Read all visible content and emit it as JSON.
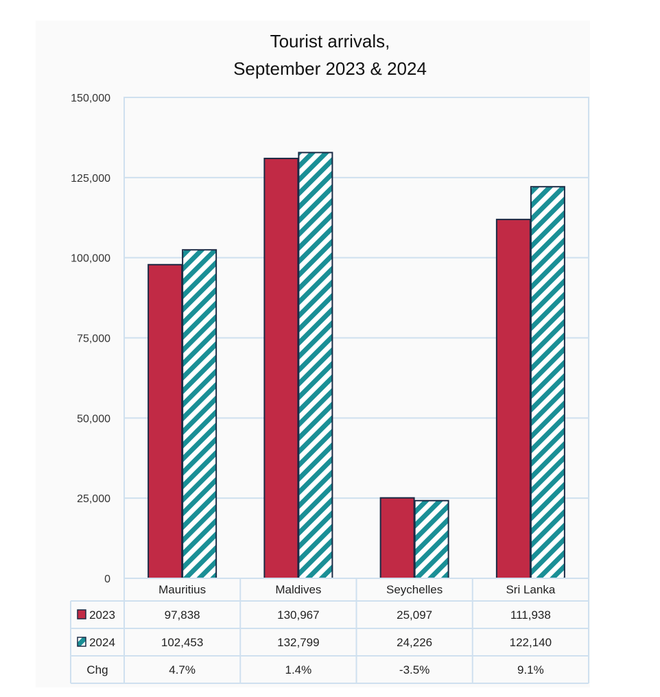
{
  "chart_data": {
    "type": "bar",
    "title_lines": [
      "Tourist arrivals,",
      "September 2023 & 2024"
    ],
    "categories": [
      "Mauritius",
      "Maldives",
      "Seychelles",
      "Sri Lanka"
    ],
    "series": [
      {
        "name": "2023",
        "values": [
          97838,
          130967,
          25097,
          111938
        ],
        "color": "#c12a45",
        "pattern": "solid"
      },
      {
        "name": "2024",
        "values": [
          102453,
          132799,
          24226,
          122140
        ],
        "color": "#1a8f96",
        "pattern": "diagonal-hatch"
      }
    ],
    "table": {
      "rows": [
        {
          "label": "2023",
          "cells": [
            "97,838",
            "130,967",
            "25,097",
            "111,938"
          ]
        },
        {
          "label": "2024",
          "cells": [
            "102,453",
            "132,799",
            "24,226",
            "122,140"
          ]
        },
        {
          "label": "Chg",
          "cells": [
            "4.7%",
            "1.4%",
            "-3.5%",
            "9.1%"
          ]
        }
      ]
    },
    "y_ticks": [
      "0",
      "25,000",
      "50,000",
      "75,000",
      "100,000",
      "125,000",
      "150,000"
    ],
    "ylim": [
      0,
      150000
    ],
    "grid": true,
    "legend": "data-table"
  },
  "colors": {
    "outline": "#1b2b45",
    "grid": "#cfe0ef",
    "hatch_bg": "#ffffff"
  }
}
